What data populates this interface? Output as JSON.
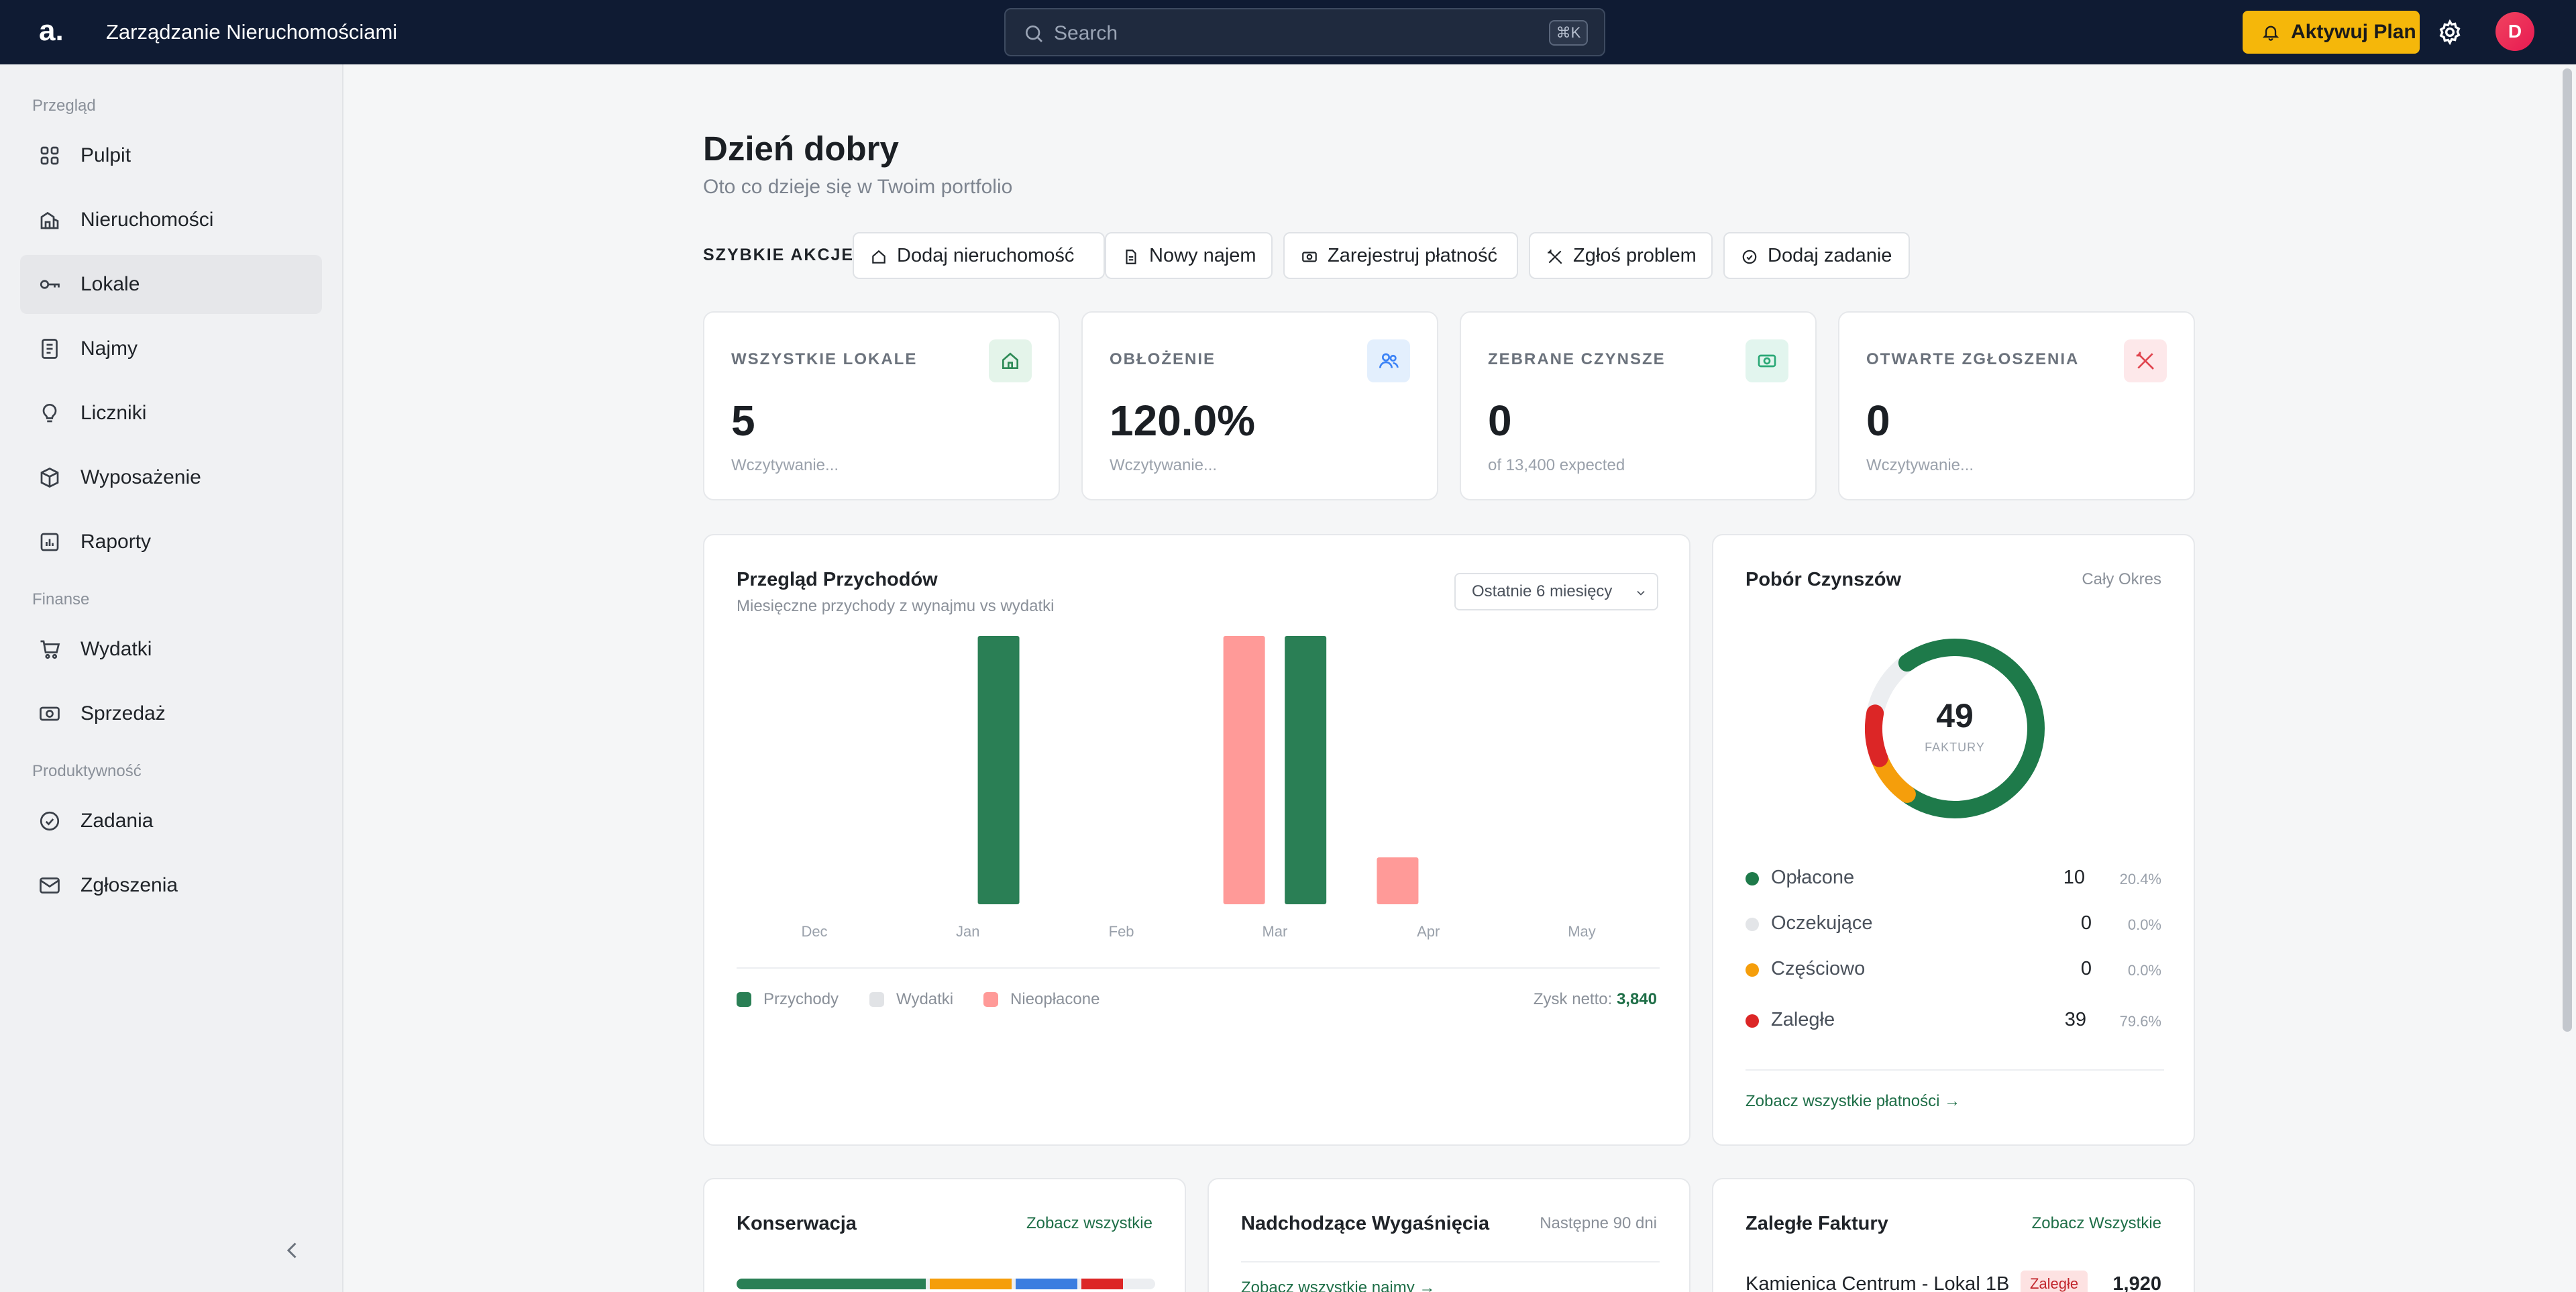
{
  "app": {
    "logo": "a.",
    "title": "Zarządzanie Nieruchomościami",
    "search_placeholder": "Search",
    "search_shortcut": "⌘K",
    "upgrade_label": "Aktywuj Plan",
    "avatar_initial": "D"
  },
  "sidebar": {
    "sections": [
      "Przegląd",
      "Finanse",
      "Produktywność"
    ],
    "items": [
      {
        "label": "Pulpit",
        "icon": "grid-icon"
      },
      {
        "label": "Nieruchomości",
        "icon": "buildings-icon"
      },
      {
        "label": "Lokale",
        "icon": "key-icon",
        "active": true
      },
      {
        "label": "Najmy",
        "icon": "document-icon"
      },
      {
        "label": "Liczniki",
        "icon": "bulb-icon"
      },
      {
        "label": "Wyposażenie",
        "icon": "box-icon"
      },
      {
        "label": "Raporty",
        "icon": "report-icon"
      },
      {
        "label": "Wydatki",
        "icon": "cart-icon"
      },
      {
        "label": "Sprzedaż",
        "icon": "cash-icon"
      },
      {
        "label": "Zadania",
        "icon": "check-circle-icon"
      },
      {
        "label": "Zgłoszenia",
        "icon": "mail-icon"
      }
    ]
  },
  "header": {
    "greeting": "Dzień dobry",
    "subtitle": "Oto co dzieje się w Twoim portfolio"
  },
  "quick_actions": {
    "label": "SZYBKIE AKCJE",
    "buttons": [
      {
        "label": "Dodaj nieruchomość",
        "icon": "home-icon"
      },
      {
        "label": "Nowy najem",
        "icon": "file-icon"
      },
      {
        "label": "Zarejestruj płatność",
        "icon": "cash-icon"
      },
      {
        "label": "Zgłoś problem",
        "icon": "tools-icon"
      },
      {
        "label": "Dodaj zadanie",
        "icon": "check-circle-icon"
      }
    ]
  },
  "stats": [
    {
      "label": "WSZYSTKIE LOKALE",
      "value": "5",
      "sub": "Wczytywanie...",
      "icon": "home-icon",
      "color": "#2e8b57",
      "bg": "#e4f4ea"
    },
    {
      "label": "OBŁOŻENIE",
      "value": "120.0%",
      "sub": "Wczytywanie...",
      "icon": "users-icon",
      "color": "#3b82f6",
      "bg": "#e3effd"
    },
    {
      "label": "ZEBRANE CZYNSZE",
      "value": "0",
      "sub": "of 13,400 expected",
      "icon": "cash-icon",
      "color": "#2aa876",
      "bg": "#e2f5ee"
    },
    {
      "label": "OTWARTE ZGŁOSZENIA",
      "value": "0",
      "sub": "Wczytywanie...",
      "icon": "tools-icon",
      "color": "#e0454f",
      "bg": "#fde8ea"
    }
  ],
  "revenue": {
    "title": "Przegląd Przychodów",
    "subtitle": "Miesięczne przychody z wynajmu vs wydatki",
    "period": "Ostatnie 6 miesięcy",
    "net_label": "Zysk netto:",
    "net_value": "3,840"
  },
  "chart_data": {
    "type": "bar",
    "categories": [
      "Dec",
      "Jan",
      "Feb",
      "Mar",
      "Apr",
      "May"
    ],
    "series": [
      {
        "name": "Przychody",
        "color": "#2a7f55",
        "values": [
          0,
          6300,
          0,
          6300,
          0,
          0
        ]
      },
      {
        "name": "Wydatki",
        "color": "#e1e3e6",
        "values": [
          0,
          0,
          0,
          0,
          0,
          0
        ]
      },
      {
        "name": "Nieopłacone",
        "color": "#ff9a98",
        "values": [
          0,
          0,
          6300,
          0,
          1100,
          0
        ]
      }
    ],
    "bar_slots": [
      {
        "series": 0,
        "x_index": 1.2,
        "value": 6300
      },
      {
        "series": 2,
        "x_index": 2.8,
        "value": 6300
      },
      {
        "series": 0,
        "x_index": 3.2,
        "value": 6300
      },
      {
        "series": 2,
        "x_index": 3.8,
        "value": 1100
      }
    ],
    "ylim": [
      0,
      6300
    ]
  },
  "rent_collection": {
    "title": "Pobór Czynszów",
    "period": "Cały Okres",
    "total": "49",
    "total_label": "FAKTURY",
    "rows": [
      {
        "label": "Opłacone",
        "value": "10",
        "pct": "20.4%",
        "color": "#1e7a4a",
        "count": 10
      },
      {
        "label": "Oczekujące",
        "value": "0",
        "pct": "0.0%",
        "color": "#e3e5e8",
        "count": 0
      },
      {
        "label": "Częściowo",
        "value": "0",
        "pct": "0.0%",
        "color": "#f59e0b",
        "count": 0
      },
      {
        "label": "Zaległe",
        "value": "39",
        "pct": "79.6%",
        "color": "#dc2626",
        "count": 39
      }
    ],
    "link": "Zobacz wszystkie płatności →"
  },
  "maintenance": {
    "title": "Konserwacja",
    "link": "Zobacz wszystkie"
  },
  "expirations": {
    "title": "Nadchodzące Wygaśnięcia",
    "period": "Następne 90 dni",
    "link": "Zobacz wszystkie najmy →"
  },
  "overdue": {
    "title": "Zaległe Faktury",
    "link": "Zobacz Wszystkie",
    "first_item": "Kamienica Centrum - Lokal 1B",
    "first_badge": "Zaległe",
    "first_amount": "1,920"
  }
}
